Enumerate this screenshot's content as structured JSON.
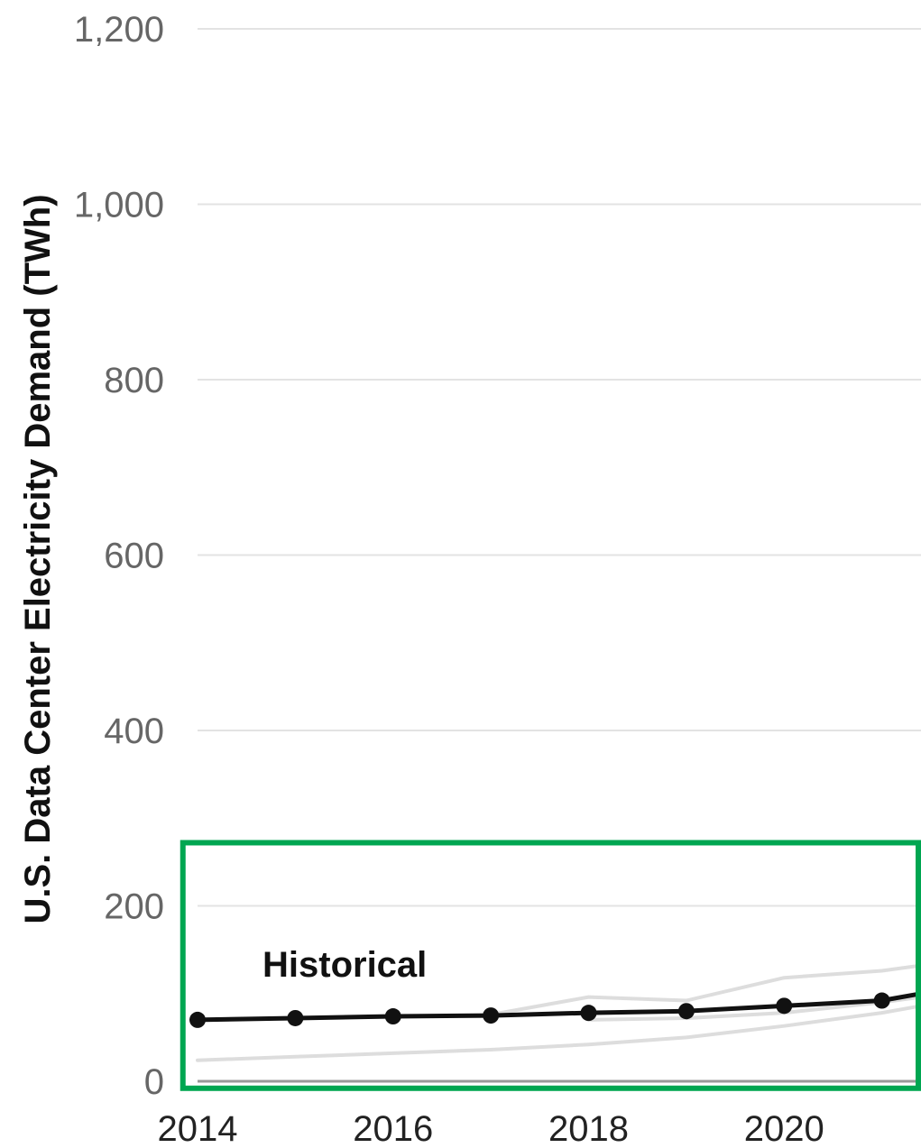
{
  "chart_data": {
    "type": "line",
    "ylabel": "U.S. Data Center Electricity Demand (TWh)",
    "xlabel": "",
    "ylim": [
      0,
      1200
    ],
    "yticks": [
      0,
      200,
      400,
      600,
      800,
      1000,
      1200
    ],
    "ytick_labels": [
      "0",
      "200",
      "400",
      "600",
      "800",
      "1,000",
      "1,200"
    ],
    "xlim": [
      2014,
      2021.4
    ],
    "xticks": [
      2014,
      2016,
      2018,
      2020
    ],
    "xtick_labels": [
      "2014",
      "2016",
      "2018",
      "2020"
    ],
    "grid": true,
    "annotation": "Historical",
    "series": [
      {
        "name": "Historical",
        "color": "#111111",
        "markers": true,
        "x": [
          2014,
          2015,
          2016,
          2017,
          2018,
          2019,
          2020,
          2021,
          2021.4
        ],
        "y": [
          70,
          72,
          74,
          75,
          78,
          80,
          86,
          92,
          100
        ]
      },
      {
        "color": "#dddddd",
        "markers": false,
        "x": [
          2014,
          2015,
          2016,
          2017,
          2018,
          2019,
          2020,
          2021,
          2021.4
        ],
        "y": [
          24,
          28,
          32,
          36,
          42,
          50,
          63,
          78,
          86
        ]
      },
      {
        "color": "#dddddd",
        "markers": false,
        "x": [
          2017,
          2018,
          2019,
          2020,
          2021,
          2021.4
        ],
        "y": [
          76,
          96,
          92,
          118,
          126,
          132
        ]
      },
      {
        "color": "#dddddd",
        "markers": false,
        "x": [
          2018,
          2019,
          2020,
          2021,
          2021.4
        ],
        "y": [
          70,
          72,
          78,
          90,
          96
        ]
      }
    ],
    "highlight_box": {
      "color": "#00a651",
      "x_range": [
        2013.85,
        2021.4
      ],
      "y_range": [
        -8,
        272
      ]
    }
  }
}
